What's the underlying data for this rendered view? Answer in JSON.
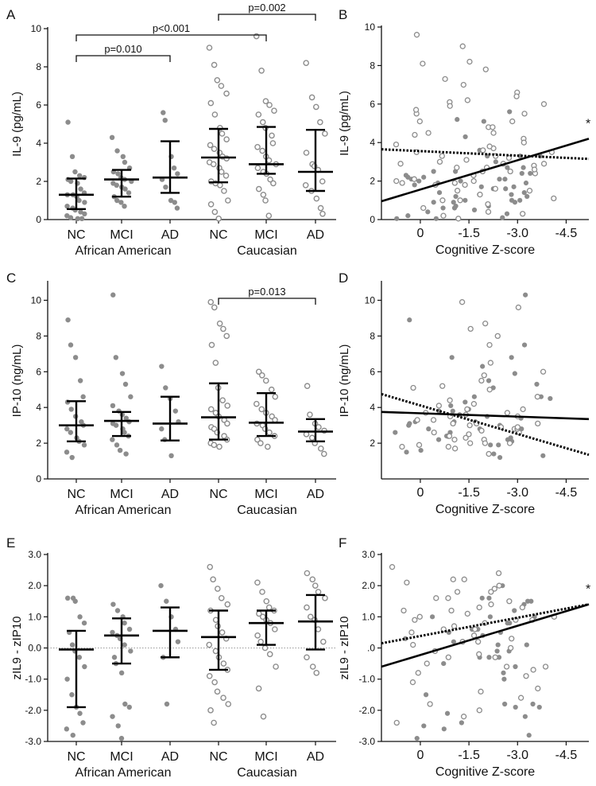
{
  "charts": [
    {
      "id": "A",
      "type": "scatter",
      "letter": "A",
      "ylabel": "IL-9 (pg/mL)",
      "yticks": [
        0,
        2,
        4,
        6,
        8,
        10
      ],
      "ylim": [
        0,
        10
      ],
      "categories": [
        "NC",
        "MCI",
        "AD",
        "NC",
        "MCI",
        "AD"
      ],
      "groups": [
        "African American",
        "Caucasian"
      ],
      "brackets": [
        {
          "from": 3,
          "to": 5,
          "label": "p=0.002"
        },
        {
          "from": 0,
          "to": 4,
          "label": "p<0.001"
        },
        {
          "from": 0,
          "to": 2,
          "label": "p=0.010"
        }
      ],
      "summary": [
        {
          "median": 1.3,
          "low": 0.55,
          "high": 2.15
        },
        {
          "median": 2.1,
          "low": 1.2,
          "high": 2.6
        },
        {
          "median": 2.2,
          "low": 1.4,
          "high": 4.1
        },
        {
          "median": 3.25,
          "low": 1.95,
          "high": 4.75
        },
        {
          "median": 2.9,
          "low": 2.4,
          "high": 4.85
        },
        {
          "median": 2.5,
          "low": 1.5,
          "high": 4.7
        }
      ],
      "points": [
        [
          5.1,
          3.3,
          2.5,
          2.3,
          2.2,
          2.1,
          2.0,
          1.9,
          1.6,
          1.4,
          1.3,
          1.3,
          1.2,
          1.0,
          0.9,
          0.7,
          0.6,
          0.5,
          0.4,
          0.3,
          0.2,
          0.1,
          0.05,
          0.05
        ],
        [
          4.3,
          3.6,
          3.3,
          3.0,
          2.7,
          2.5,
          2.4,
          2.2,
          2.1,
          2.0,
          1.9,
          1.8,
          1.7,
          1.6,
          1.4,
          1.2,
          1.0,
          0.9,
          0.7
        ],
        [
          5.6,
          5.2,
          3.3,
          2.7,
          2.4,
          2.1,
          1.7,
          1.0,
          0.9,
          0.6
        ],
        [
          9.0,
          8.1,
          7.3,
          7.0,
          6.6,
          6.1,
          5.5,
          4.8,
          4.5,
          4.2,
          3.9,
          3.7,
          3.5,
          3.3,
          3.2,
          3.0,
          2.9,
          2.7,
          2.5,
          2.3,
          2.0,
          1.9,
          1.8,
          1.5,
          1.0,
          0.8,
          0.4,
          0.05
        ],
        [
          9.6,
          7.8,
          6.2,
          6.0,
          5.7,
          5.5,
          5.1,
          4.8,
          4.4,
          4.0,
          3.8,
          3.6,
          3.3,
          3.1,
          2.9,
          2.7,
          2.5,
          2.4,
          2.1,
          1.9,
          1.6,
          1.3,
          1.0,
          0.2
        ],
        [
          8.2,
          6.4,
          5.9,
          5.1,
          4.5,
          3.5,
          2.9,
          2.8,
          2.6,
          2.0,
          1.8,
          1.5,
          1.1,
          0.6,
          0.3
        ]
      ]
    },
    {
      "id": "B",
      "type": "scatter-regression",
      "letter": "B",
      "ylabel": "IL-9 (pg/mL)",
      "xlabel": "Cognitive Z-score",
      "yticks": [
        0,
        2,
        4,
        6,
        8,
        10
      ],
      "ylim": [
        0,
        10
      ],
      "xticks": [
        0,
        -1.5,
        -3.0,
        -4.5
      ],
      "xtick_labels": [
        "0",
        "-1.5",
        "-3.0",
        "-4.5"
      ],
      "xlim": [
        1.2,
        -5.2
      ],
      "annotation": "*",
      "lines": [
        {
          "style": "solid",
          "y_at_xmin": 0.95,
          "y_at_xmax": 4.2
        },
        {
          "style": "dotted",
          "y_at_xmin": 3.65,
          "y_at_xmax": 3.15
        }
      ]
    },
    {
      "id": "C",
      "type": "scatter",
      "letter": "C",
      "ylabel": "IP-10 (ng/mL)",
      "yticks": [
        0,
        2,
        4,
        6,
        8,
        10
      ],
      "ylim": [
        0,
        11
      ],
      "categories": [
        "NC",
        "MCI",
        "AD",
        "NC",
        "MCI",
        "AD"
      ],
      "groups": [
        "African American",
        "Caucasian"
      ],
      "brackets": [
        {
          "from": 3,
          "to": 5,
          "label": "p=0.013"
        }
      ],
      "summary": [
        {
          "median": 3.0,
          "low": 2.1,
          "high": 4.35
        },
        {
          "median": 3.25,
          "low": 2.4,
          "high": 3.75
        },
        {
          "median": 3.1,
          "low": 2.15,
          "high": 4.6
        },
        {
          "median": 3.45,
          "low": 2.2,
          "high": 5.35
        },
        {
          "median": 3.15,
          "low": 2.4,
          "high": 4.8
        },
        {
          "median": 2.65,
          "low": 2.1,
          "high": 3.35
        }
      ],
      "points": [
        [
          8.9,
          7.5,
          6.8,
          5.5,
          4.6,
          4.3,
          3.9,
          3.5,
          3.2,
          3.0,
          2.8,
          2.6,
          2.3,
          2.1,
          1.9,
          1.5,
          1.2
        ],
        [
          10.3,
          6.8,
          5.9,
          5.3,
          4.6,
          4.1,
          3.8,
          3.6,
          3.4,
          3.2,
          3.1,
          3.0,
          2.8,
          2.6,
          2.4,
          2.2,
          1.9,
          1.6,
          1.4
        ],
        [
          6.3,
          5.1,
          4.5,
          3.8,
          3.2,
          2.8,
          2.2,
          1.3
        ],
        [
          9.9,
          9.6,
          8.7,
          8.4,
          8.0,
          7.5,
          6.5,
          5.1,
          4.4,
          4.1,
          3.9,
          3.7,
          3.5,
          3.3,
          3.1,
          2.9,
          2.8,
          2.6,
          2.4,
          2.2,
          2.0,
          1.9,
          1.8
        ],
        [
          6.0,
          5.8,
          5.5,
          5.0,
          4.6,
          4.2,
          3.9,
          3.7,
          3.5,
          3.3,
          3.1,
          3.0,
          2.8,
          2.6,
          2.4,
          2.2,
          2.0,
          1.8
        ],
        [
          5.2,
          3.6,
          3.1,
          2.9,
          2.7,
          2.5,
          2.3,
          2.0,
          1.7,
          1.4
        ]
      ]
    },
    {
      "id": "D",
      "type": "scatter-regression",
      "letter": "D",
      "ylabel": "IP-10 (ng/mL)",
      "xlabel": "Cognitive Z-score",
      "yticks": [
        2,
        4,
        6,
        8,
        10
      ],
      "ylim": [
        0,
        11
      ],
      "xticks": [
        0,
        -1.5,
        -3.0,
        -4.5
      ],
      "xtick_labels": [
        "0",
        "-1.5",
        "-3.0",
        "-4.5"
      ],
      "xlim": [
        1.2,
        -5.2
      ],
      "annotation": "",
      "lines": [
        {
          "style": "solid",
          "y_at_xmin": 3.75,
          "y_at_xmax": 3.35
        },
        {
          "style": "dotted",
          "y_at_xmin": 4.75,
          "y_at_xmax": 1.35
        }
      ]
    },
    {
      "id": "E",
      "type": "scatter",
      "letter": "E",
      "ylabel": "zIL9 - zIP10",
      "yticks": [
        -3.0,
        -2.0,
        -1.0,
        0.0,
        1.0,
        2.0,
        3.0
      ],
      "ytick_labels": [
        "-3.0",
        "-2.0",
        "-1.0",
        "0.0",
        "1.0",
        "2.0",
        "3.0"
      ],
      "ylim": [
        -3,
        3
      ],
      "zero_line": true,
      "categories": [
        "NC",
        "MCI",
        "AD",
        "NC",
        "MCI",
        "AD"
      ],
      "groups": [
        "African American",
        "Caucasian"
      ],
      "brackets": [],
      "summary": [
        {
          "median": -0.05,
          "low": -1.9,
          "high": 0.55
        },
        {
          "median": 0.4,
          "low": -0.5,
          "high": 0.95
        },
        {
          "median": 0.55,
          "low": -0.3,
          "high": 1.3
        },
        {
          "median": 0.35,
          "low": -0.7,
          "high": 1.2
        },
        {
          "median": 0.8,
          "low": 0.1,
          "high": 1.2
        },
        {
          "median": 0.85,
          "low": -0.05,
          "high": 1.7
        }
      ],
      "points": [
        [
          1.6,
          1.6,
          1.5,
          1.0,
          0.8,
          0.5,
          0.1,
          -0.1,
          -0.3,
          -0.6,
          -1.0,
          -1.5,
          -1.9,
          -2.1,
          -2.4,
          -2.6,
          -2.8
        ],
        [
          1.4,
          1.2,
          1.0,
          0.8,
          0.6,
          0.5,
          0.4,
          0.3,
          0.1,
          -0.1,
          -0.3,
          -0.5,
          -0.8,
          -1.8,
          -1.9,
          -2.2,
          -2.5,
          -2.9
        ],
        [
          2.0,
          1.5,
          1.0,
          0.6,
          0.2,
          -0.3,
          -1.8
        ],
        [
          2.6,
          2.2,
          1.9,
          1.6,
          1.4,
          1.2,
          0.9,
          0.7,
          0.5,
          0.3,
          0.1,
          -0.1,
          -0.3,
          -0.5,
          -0.7,
          -0.9,
          -1.1,
          -1.4,
          -1.6,
          -1.8,
          -2.0,
          -2.4
        ],
        [
          2.1,
          1.8,
          1.5,
          1.3,
          1.2,
          1.1,
          1.0,
          0.9,
          0.8,
          0.6,
          0.4,
          0.2,
          0.0,
          -0.2,
          -0.6,
          -1.3,
          -2.2
        ],
        [
          2.4,
          2.2,
          2.0,
          1.8,
          1.6,
          1.3,
          1.0,
          0.9,
          0.6,
          0.2,
          -0.3,
          -0.6,
          -0.8
        ]
      ]
    },
    {
      "id": "F",
      "type": "scatter-regression",
      "letter": "F",
      "ylabel": "zIL9 - zIP10",
      "xlabel": "Cognitive Z-score",
      "yticks": [
        -3.0,
        -2.0,
        -1.0,
        0.0,
        1.0,
        2.0,
        3.0
      ],
      "ytick_labels": [
        "-3.0",
        "-2.0",
        "-1.0",
        ".0",
        "1.0",
        "2.0",
        "3.0"
      ],
      "ylim": [
        -3,
        3
      ],
      "xticks": [
        0,
        -1.5,
        -3.0,
        -4.5
      ],
      "xtick_labels": [
        "0",
        "-1.5",
        "-3.0",
        "-4.5"
      ],
      "xlim": [
        1.2,
        -5.2
      ],
      "annotation": "*",
      "lines": [
        {
          "style": "solid",
          "y_at_xmin": -0.6,
          "y_at_xmax": 1.4
        },
        {
          "style": "dotted",
          "y_at_xmin": 0.15,
          "y_at_xmax": 1.4
        }
      ]
    }
  ],
  "colors": {
    "axis": "#111111",
    "point_fill": "#8c8c8c",
    "point_open_stroke": "#8c8c8c",
    "summary_bar": "#000000",
    "zero_line": "#777777"
  }
}
